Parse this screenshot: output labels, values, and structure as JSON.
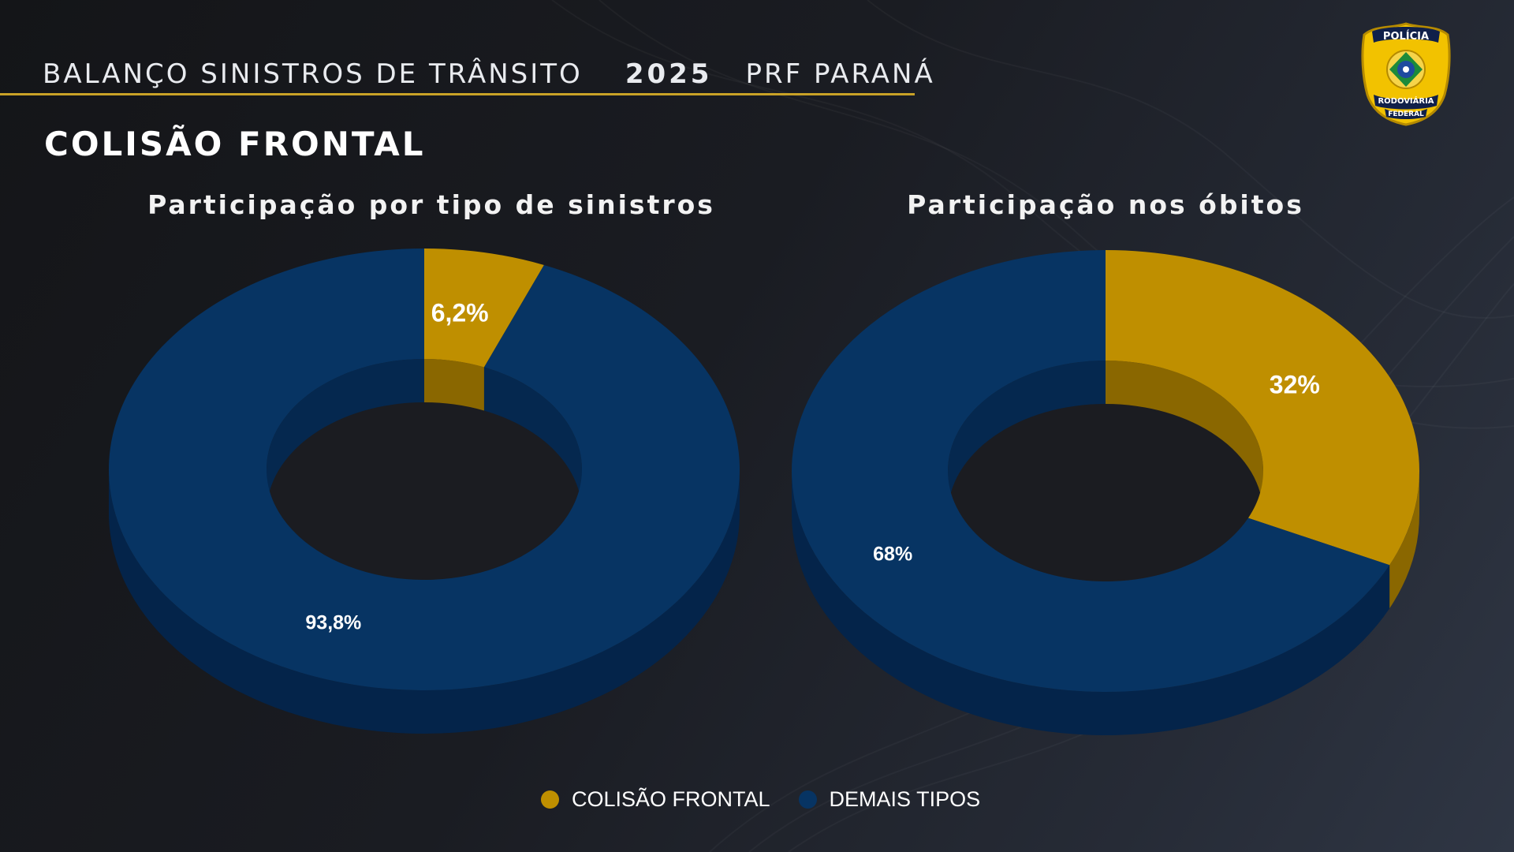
{
  "header": {
    "title": "BALANÇO SINISTROS DE TRÂNSITO",
    "year": "2025",
    "region": "PRF PARANÁ"
  },
  "section_title": "COLISÃO FRONTAL",
  "badge": {
    "top_text": "POLÍCIA",
    "bottom_text_1": "RODOVIÁRIA",
    "bottom_text_2": "FEDERAL",
    "icon": "prf-shield-icon"
  },
  "colors": {
    "accent": "#c9a227",
    "frontal": "#bf8f00",
    "frontal_side": "#8a6700",
    "others": "#073463",
    "others_side": "#04244a",
    "hole": "#1b1c21"
  },
  "legend": [
    {
      "label": "COLISÃO FRONTAL",
      "color": "#bf8f00"
    },
    {
      "label": "DEMAIS TIPOS",
      "color": "#073463"
    }
  ],
  "chart_data": [
    {
      "type": "pie",
      "variant": "3d-donut",
      "title": "Participação por tipo de sinistros",
      "categories": [
        "COLISÃO FRONTAL",
        "DEMAIS TIPOS"
      ],
      "values": [
        6.2,
        93.8
      ],
      "labels": [
        "6,2%",
        "93,8%"
      ]
    },
    {
      "type": "pie",
      "variant": "3d-donut",
      "title": "Participação nos óbitos",
      "categories": [
        "COLISÃO FRONTAL",
        "DEMAIS TIPOS"
      ],
      "values": [
        32,
        68
      ],
      "labels": [
        "32%",
        "68%"
      ]
    }
  ]
}
